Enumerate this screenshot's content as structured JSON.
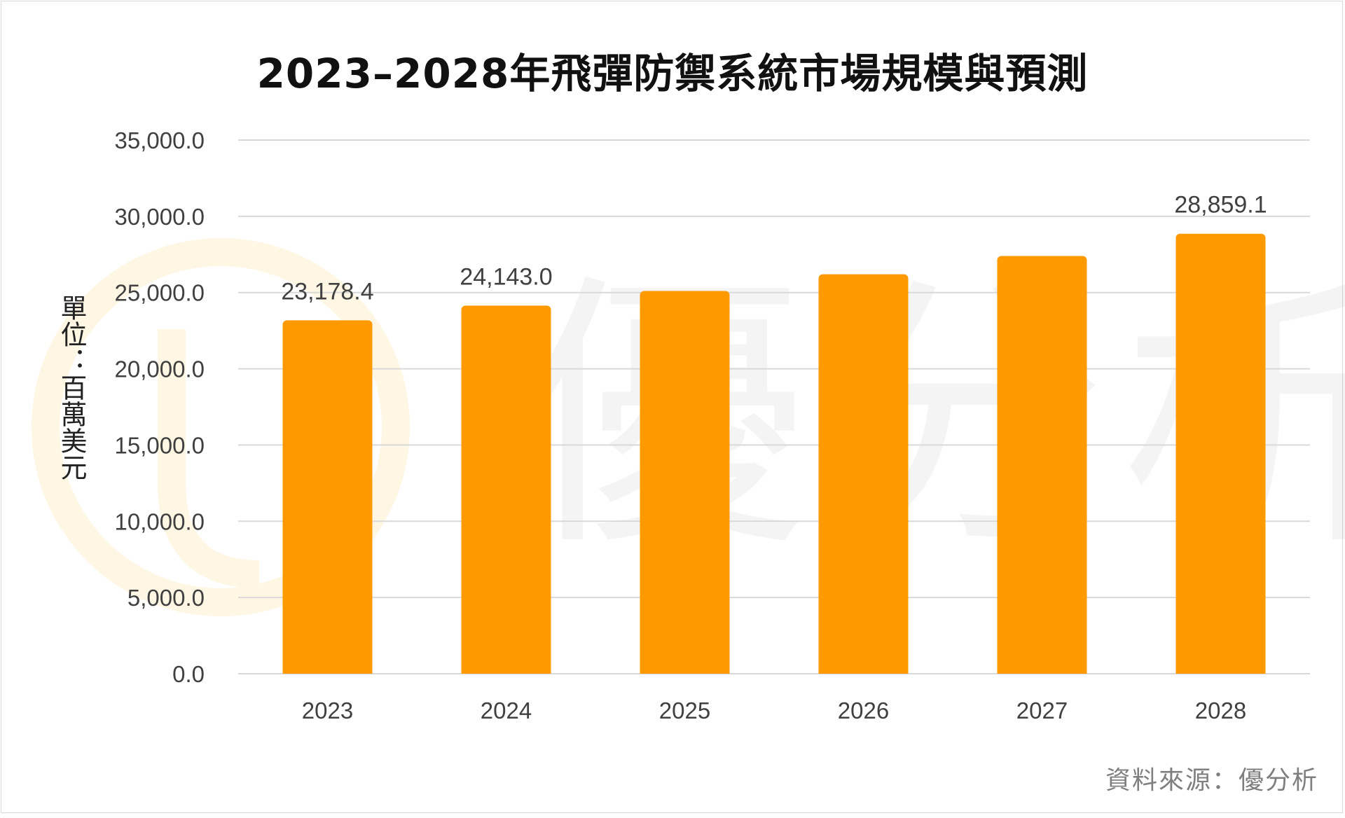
{
  "chart_data": {
    "type": "bar",
    "title": "2023–2028年飛彈防禦系統市場規模與預測",
    "ylabel": "單位：百萬美元",
    "xlabel": "",
    "categories": [
      "2023",
      "2024",
      "2025",
      "2026",
      "2027",
      "2028"
    ],
    "values": [
      23178.4,
      24143.0,
      25100.0,
      26200.0,
      27400.0,
      28859.1
    ],
    "data_labels": [
      "23,178.4",
      "24,143.0",
      "",
      "",
      "",
      "28,859.1"
    ],
    "ylim": [
      0,
      35000
    ],
    "yticks": [
      0,
      5000,
      10000,
      15000,
      20000,
      25000,
      30000,
      35000
    ],
    "ytick_labels": [
      "0.0",
      "5,000.0",
      "10,000.0",
      "15,000.0",
      "20,000.0",
      "25,000.0",
      "30,000.0",
      "35,000.0"
    ],
    "grid": true,
    "bar_color": "#FF9900",
    "gridline_color": "#d9d9d9"
  },
  "source_text": "資料來源：優分析",
  "watermark_text": "優分析",
  "watermark_logo_color": "#FFF4DC"
}
